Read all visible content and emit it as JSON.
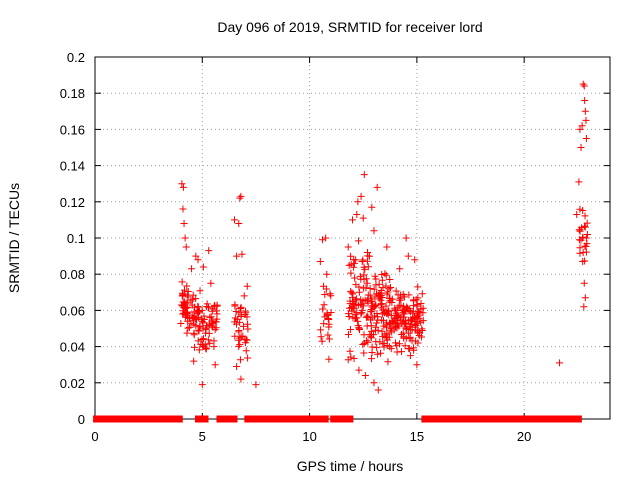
{
  "chart_data": {
    "type": "scatter",
    "title": "Day 096 of 2019, SRMTID for receiver lord",
    "xlabel": "GPS time / hours",
    "ylabel": "SRMTID / TECUs",
    "xlim": [
      0,
      24
    ],
    "ylim": [
      0,
      0.2
    ],
    "grid": true,
    "marker": "+",
    "series_color": "#ff0000",
    "x_ticks": [
      "0",
      "5",
      "10",
      "15",
      "20"
    ],
    "y_ticks": [
      "0",
      "0.02",
      "0.04",
      "0.06",
      "0.08",
      "0.1",
      "0.12",
      "0.14",
      "0.16",
      "0.18",
      "0.2"
    ],
    "zero_segments": [
      [
        0.05,
        3.95
      ],
      [
        4.8,
        5.15
      ],
      [
        5.8,
        6.5
      ],
      [
        7.1,
        10.3
      ],
      [
        10.45,
        10.75
      ],
      [
        11.1,
        11.9
      ],
      [
        15.35,
        22.55
      ]
    ],
    "clusters": [
      {
        "x": [
          4.0,
          4.35
        ],
        "y": [
          0.04,
          0.085
        ],
        "n": 38
      },
      {
        "x": [
          4.4,
          5.0
        ],
        "y": [
          0.035,
          0.075
        ],
        "n": 42
      },
      {
        "x": [
          5.0,
          5.7
        ],
        "y": [
          0.035,
          0.07
        ],
        "n": 50
      },
      {
        "x": [
          6.5,
          7.15
        ],
        "y": [
          0.03,
          0.075
        ],
        "n": 38
      },
      {
        "x": [
          10.5,
          11.0
        ],
        "y": [
          0.035,
          0.08
        ],
        "n": 22
      },
      {
        "x": [
          11.8,
          12.8
        ],
        "y": [
          0.03,
          0.1
        ],
        "n": 90
      },
      {
        "x": [
          12.8,
          13.8
        ],
        "y": [
          0.03,
          0.085
        ],
        "n": 110
      },
      {
        "x": [
          13.8,
          15.3
        ],
        "y": [
          0.035,
          0.075
        ],
        "n": 140
      },
      {
        "x": [
          22.55,
          22.95
        ],
        "y": [
          0.08,
          0.12
        ],
        "n": 22
      }
    ],
    "points": [
      [
        4.05,
        0.13
      ],
      [
        4.12,
        0.128
      ],
      [
        4.1,
        0.116
      ],
      [
        4.15,
        0.108
      ],
      [
        4.2,
        0.1
      ],
      [
        4.25,
        0.095
      ],
      [
        4.5,
        0.083
      ],
      [
        4.7,
        0.09
      ],
      [
        4.8,
        0.088
      ],
      [
        5.05,
        0.084
      ],
      [
        5.0,
        0.019
      ],
      [
        4.6,
        0.032
      ],
      [
        5.3,
        0.093
      ],
      [
        5.4,
        0.075
      ],
      [
        5.6,
        0.03
      ],
      [
        6.5,
        0.11
      ],
      [
        6.6,
        0.09
      ],
      [
        6.7,
        0.108
      ],
      [
        6.75,
        0.122
      ],
      [
        6.8,
        0.123
      ],
      [
        6.85,
        0.091
      ],
      [
        6.8,
        0.022
      ],
      [
        6.6,
        0.029
      ],
      [
        7.5,
        0.019
      ],
      [
        10.6,
        0.099
      ],
      [
        10.75,
        0.1
      ],
      [
        10.5,
        0.087
      ],
      [
        10.8,
        0.08
      ],
      [
        10.9,
        0.033
      ],
      [
        11.8,
        0.095
      ],
      [
        12.0,
        0.11
      ],
      [
        12.2,
        0.113
      ],
      [
        12.25,
        0.12
      ],
      [
        12.4,
        0.123
      ],
      [
        12.5,
        0.111
      ],
      [
        12.55,
        0.135
      ],
      [
        12.9,
        0.117
      ],
      [
        13.15,
        0.128
      ],
      [
        13.0,
        0.104
      ],
      [
        12.7,
        0.092
      ],
      [
        12.3,
        0.027
      ],
      [
        12.6,
        0.024
      ],
      [
        13.2,
        0.016
      ],
      [
        13.0,
        0.02
      ],
      [
        13.6,
        0.095
      ],
      [
        14.2,
        0.083
      ],
      [
        14.5,
        0.1
      ],
      [
        14.6,
        0.09
      ],
      [
        14.9,
        0.088
      ],
      [
        15.0,
        0.03
      ],
      [
        14.7,
        0.035
      ],
      [
        21.65,
        0.031
      ],
      [
        22.45,
        0.113
      ],
      [
        22.55,
        0.131
      ],
      [
        22.6,
        0.16
      ],
      [
        22.65,
        0.15
      ],
      [
        22.7,
        0.162
      ],
      [
        22.75,
        0.185
      ],
      [
        22.8,
        0.184
      ],
      [
        22.82,
        0.176
      ],
      [
        22.85,
        0.17
      ],
      [
        22.88,
        0.165
      ],
      [
        22.9,
        0.155
      ],
      [
        22.72,
        0.1
      ],
      [
        22.75,
        0.092
      ],
      [
        22.8,
        0.075
      ],
      [
        22.85,
        0.067
      ],
      [
        22.78,
        0.062
      ],
      [
        22.9,
        0.1
      ]
    ]
  }
}
